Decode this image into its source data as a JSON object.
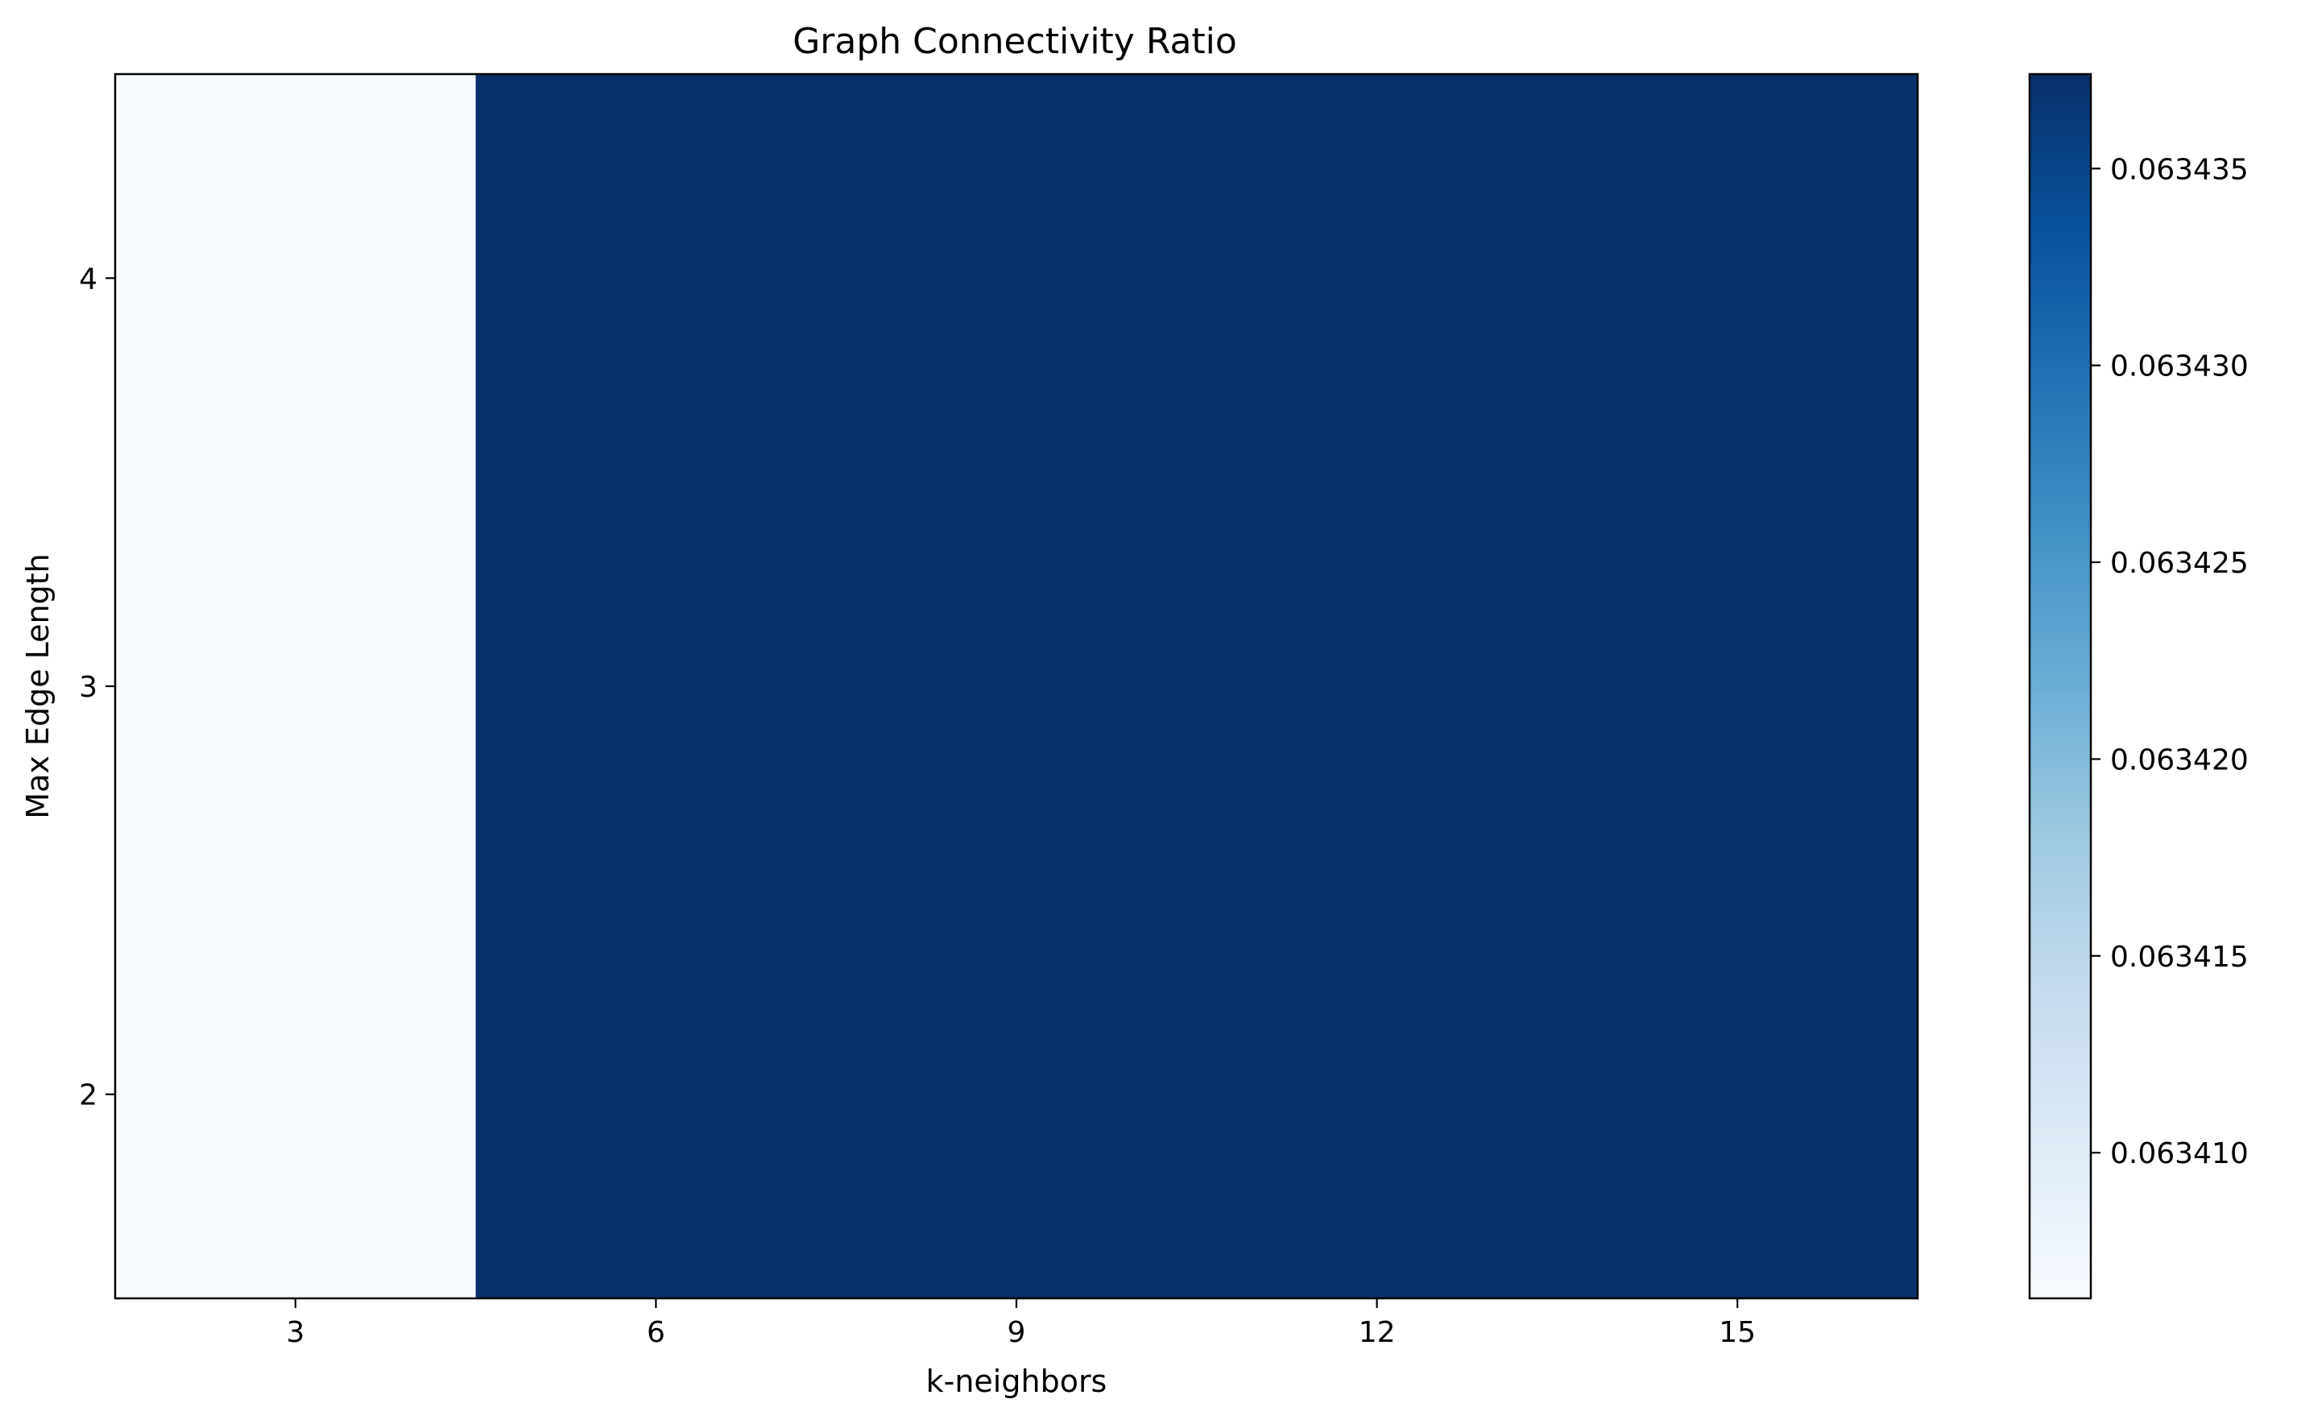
{
  "chart_data": {
    "type": "heatmap",
    "title": "Graph Connectivity Ratio",
    "xlabel": "k-neighbors",
    "ylabel": "Max Edge Length",
    "x": [
      3,
      6,
      9,
      12,
      15
    ],
    "y": [
      2,
      3,
      4
    ],
    "values": [
      [
        0.0634063,
        0.0634374,
        0.0634374,
        0.0634374,
        0.0634374
      ],
      [
        0.0634063,
        0.0634374,
        0.0634374,
        0.0634374,
        0.0634374
      ],
      [
        0.0634063,
        0.0634374,
        0.0634374,
        0.0634374,
        0.0634374
      ]
    ],
    "xlim": [
      1.5,
      16.5
    ],
    "ylim": [
      1.5,
      4.5
    ],
    "x_ticks": [
      "3",
      "6",
      "9",
      "12",
      "15"
    ],
    "y_ticks": [
      "2",
      "3",
      "4"
    ],
    "colormap": "Blues",
    "colorbar": {
      "range": [
        0.0634063,
        0.0634374
      ],
      "ticks": [
        0.06341,
        0.063415,
        0.06342,
        0.063425,
        0.06343,
        0.063435
      ],
      "tick_labels": [
        "0.063410",
        "0.063415",
        "0.063420",
        "0.063425",
        "0.063430",
        "0.063435"
      ]
    },
    "colors": {
      "low": "#f7fbff",
      "high": "#08306b"
    },
    "grid": false,
    "legend": "colorbar-right"
  }
}
